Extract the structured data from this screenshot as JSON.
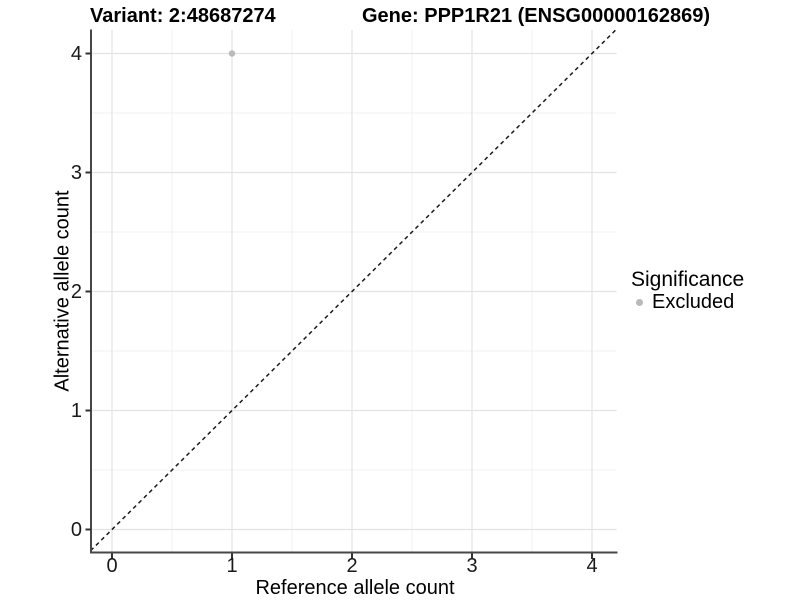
{
  "figure": {
    "title_left": "Variant: 2:48687274",
    "title_right": "Gene: PPP1R21 (ENSG00000162869)"
  },
  "axes": {
    "x": {
      "label": "Reference allele count",
      "tick_labels": [
        "0",
        "1",
        "2",
        "3",
        "4"
      ],
      "tick_values": [
        0,
        1,
        2,
        3,
        4
      ],
      "minor_values": [
        0.5,
        1.5,
        2.5,
        3.5
      ]
    },
    "y": {
      "label": "Alternative allele count",
      "tick_labels": [
        "0",
        "1",
        "2",
        "3",
        "4"
      ],
      "tick_values": [
        0,
        1,
        2,
        3,
        4
      ],
      "minor_values": [
        0.5,
        1.5,
        2.5,
        3.5
      ]
    }
  },
  "legend": {
    "title": "Significance",
    "items": [
      {
        "label": "Excluded",
        "color": "#b9b9b9"
      }
    ]
  },
  "chart_data": {
    "type": "scatter",
    "title": "Variant: 2:48687274 — Gene: PPP1R21 (ENSG00000162869)",
    "xlabel": "Reference allele count",
    "ylabel": "Alternative allele count",
    "xlim": [
      -0.2,
      4.2
    ],
    "ylim": [
      -0.2,
      4.2
    ],
    "grid": "major+minor",
    "legend_position": "right",
    "series": [
      {
        "name": "Excluded",
        "color": "#b9b9b9",
        "points": [
          {
            "x": 1,
            "y": 4
          }
        ]
      }
    ],
    "reference_line": {
      "kind": "identity",
      "slope": 1,
      "intercept": 0,
      "style": "dashed",
      "color": "#1a1a1a"
    }
  },
  "colors": {
    "background": "#ffffff",
    "grid_major": "#e3e3e3",
    "grid_minor": "#f1f1f1",
    "axis_line": "#474747",
    "tick_mark": "#333333",
    "point": "#b9b9b9",
    "text": "#000000"
  }
}
